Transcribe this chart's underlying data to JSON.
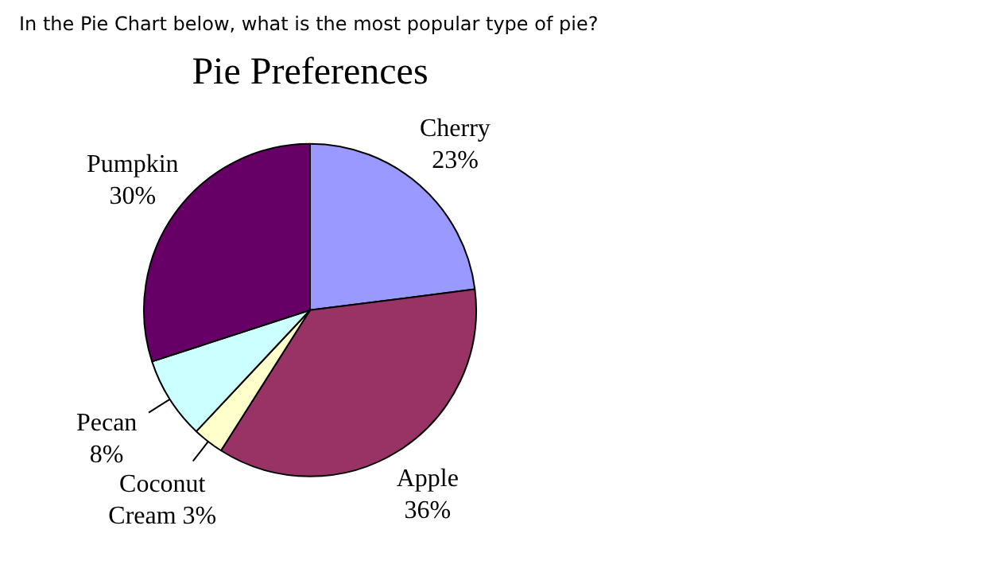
{
  "chart_data": {
    "type": "pie",
    "title": "Pie Preferences",
    "annotations": [
      "In the Pie Chart below, what is the most popular type of pie?"
    ],
    "categories": [
      "Cherry",
      "Apple",
      "Coconut Cream",
      "Pecan",
      "Pumpkin"
    ],
    "values": [
      23,
      36,
      3,
      8,
      30
    ],
    "colors": [
      "#9999ff",
      "#993366",
      "#ffffcc",
      "#ccffff",
      "#660066"
    ],
    "value_labels": [
      "23%",
      "36%",
      "3%",
      "8%",
      "30%"
    ],
    "legend": false
  }
}
